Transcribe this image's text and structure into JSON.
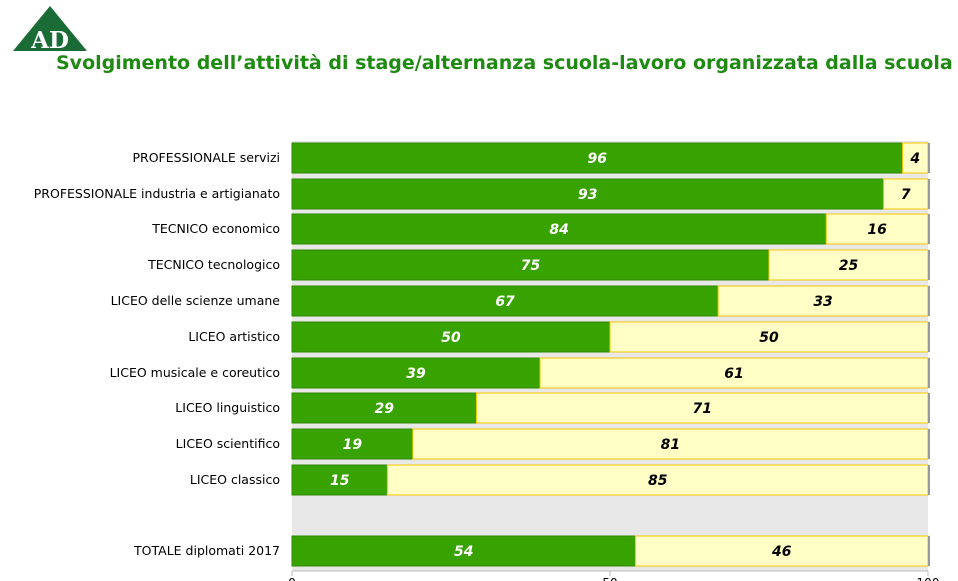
{
  "logo": {
    "text": "AD",
    "color": "#1a6b35"
  },
  "title": "Svolgimento dell’attività di stage/alternanza scuola-lavoro organizzata dalla scuola",
  "chart_data": {
    "type": "bar",
    "orientation": "horizontal",
    "stacked": true,
    "title": "Svolgimento dell’attività di stage/alternanza scuola-lavoro organizzata dalla scuola",
    "categories": [
      "PROFESSIONALE servizi",
      "PROFESSIONALE industria e artigianato",
      "TECNICO economico",
      "TECNICO tecnologico",
      "LICEO delle scienze umane",
      "LICEO artistico",
      "LICEO musicale e coreutico",
      "LICEO linguistico",
      "LICEO scientifico",
      "LICEO classico",
      "TOTALE diplomati 2017"
    ],
    "series": [
      {
        "color": "#38a200",
        "values": [
          96,
          93,
          84,
          75,
          67,
          50,
          39,
          29,
          19,
          15,
          54
        ]
      },
      {
        "color": "#ffffc6",
        "values": [
          4,
          7,
          16,
          25,
          33,
          50,
          61,
          71,
          81,
          85,
          46
        ]
      }
    ],
    "xlim": [
      0,
      100
    ],
    "xticks": [
      "0",
      "50",
      "100"
    ],
    "grid": false,
    "legend": "none"
  }
}
